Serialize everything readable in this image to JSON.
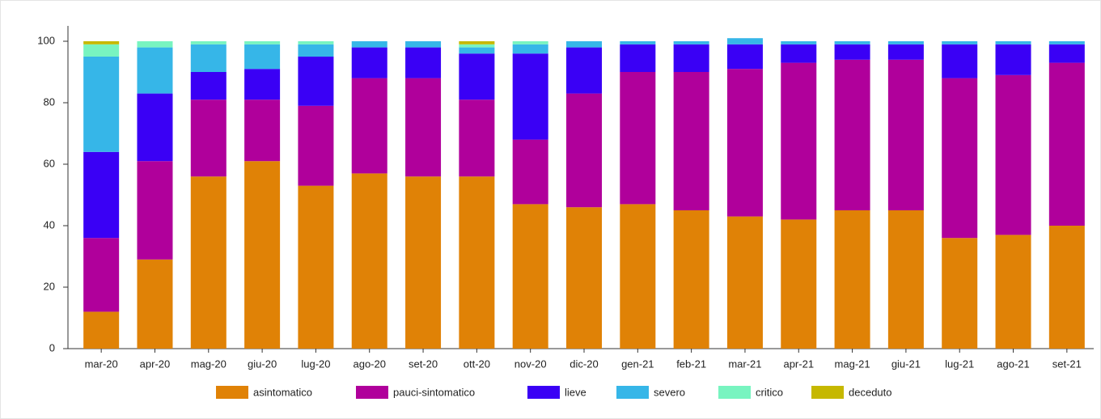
{
  "chart_data": {
    "type": "stacked_bar",
    "categories": [
      "mar-20",
      "apr-20",
      "mag-20",
      "giu-20",
      "lug-20",
      "ago-20",
      "set-20",
      "ott-20",
      "nov-20",
      "dic-20",
      "gen-21",
      "feb-21",
      "mar-21",
      "apr-21",
      "mag-21",
      "giu-21",
      "lug-21",
      "ago-21",
      "set-21"
    ],
    "series": [
      {
        "name": "asintomatico",
        "color": "#e08206",
        "values": [
          12,
          29,
          56,
          61,
          53,
          57,
          56,
          56,
          47,
          46,
          47,
          45,
          43,
          42,
          45,
          45,
          36,
          37,
          40
        ]
      },
      {
        "name": "pauci-sintomatico",
        "color": "#b0009b",
        "values": [
          24,
          32,
          25,
          20,
          26,
          31,
          32,
          25,
          21,
          37,
          43,
          45,
          48,
          51,
          49,
          49,
          52,
          52,
          53
        ]
      },
      {
        "name": "lieve",
        "color": "#3a00f5",
        "values": [
          28,
          22,
          9,
          10,
          16,
          10,
          10,
          15,
          28,
          15,
          9,
          9,
          8,
          6,
          5,
          5,
          11,
          10,
          6
        ]
      },
      {
        "name": "severo",
        "color": "#36b6e8",
        "values": [
          31,
          15,
          9,
          8,
          4,
          2,
          2,
          2,
          3,
          2,
          1,
          1,
          2,
          1,
          1,
          1,
          1,
          1,
          1
        ]
      },
      {
        "name": "critico",
        "color": "#78f4c0",
        "values": [
          4,
          2,
          1,
          1,
          1,
          0,
          0,
          1,
          1,
          0,
          0,
          0,
          0,
          0,
          0,
          0,
          0,
          0,
          0
        ]
      },
      {
        "name": "deceduto",
        "color": "#c6b800",
        "values": [
          1,
          0,
          0,
          0,
          0,
          0,
          0,
          1,
          0,
          0,
          0,
          0,
          0,
          0,
          0,
          0,
          0,
          0,
          0
        ]
      }
    ],
    "ylim": [
      0,
      105
    ],
    "yticks": [
      0,
      20,
      40,
      60,
      80,
      100
    ]
  }
}
